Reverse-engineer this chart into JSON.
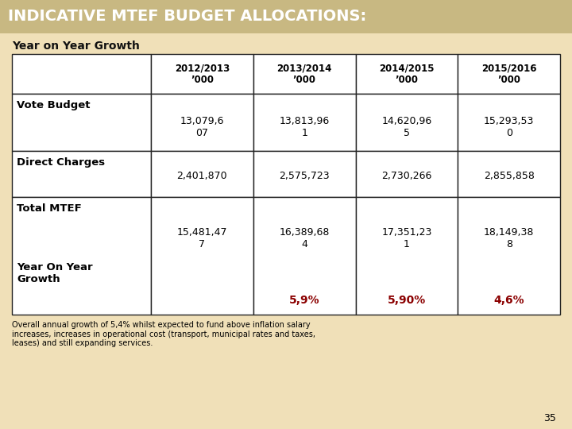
{
  "title": "INDICATIVE MTEF BUDGET ALLOCATIONS:",
  "subtitle": "Year on Year Growth",
  "bg_color": "#f0e0b8",
  "title_bg_color": "#c8b882",
  "header_cols": [
    "2012/2013\n’000",
    "2013/2014\n’000",
    "2014/2015\n’000",
    "2015/2016\n’000"
  ],
  "vote_vals": [
    "13,079,6\n07",
    "13,813,96\n1",
    "14,620,96\n5",
    "15,293,53\n0"
  ],
  "direct_vals": [
    "2,401,870",
    "2,575,723",
    "2,730,266",
    "2,855,858"
  ],
  "total_vals": [
    "15,481,47\n7",
    "16,389,68\n4",
    "17,351,23\n1",
    "18,149,38\n8"
  ],
  "growth_vals": [
    "5,9%",
    "5,90%",
    "4,6%"
  ],
  "footer_text": "Overall annual growth of 5,4% whilst expected to fund above inflation salary\nincreases, increases in operational cost (transport, municipal rates and taxes,\nleases) and still expanding services.",
  "page_num": "35",
  "growth_color": "#8B0000",
  "table_border_color": "#222222",
  "cell_bg": "#ffffff",
  "title_text_color": "#ffffff"
}
